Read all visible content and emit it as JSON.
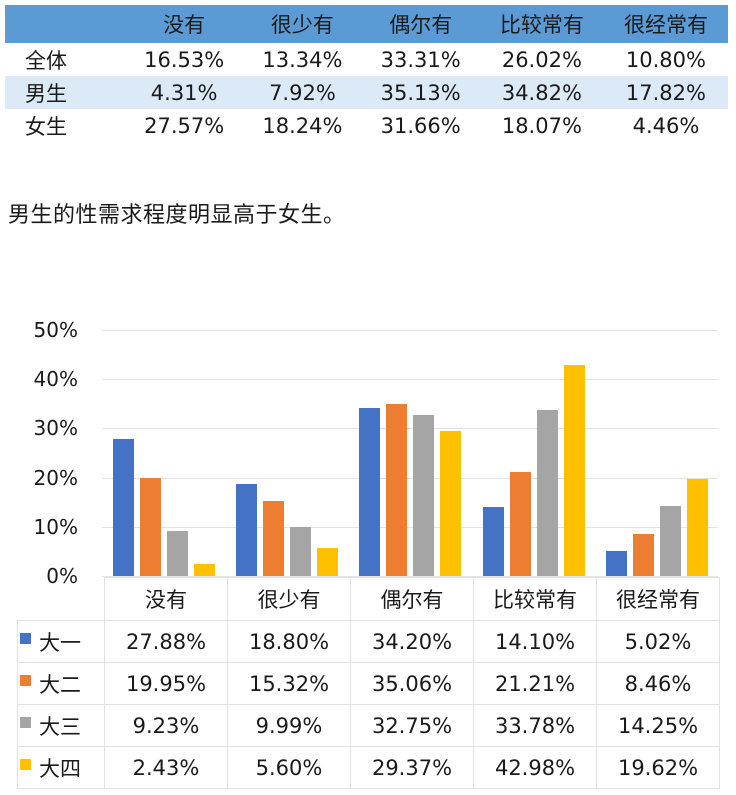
{
  "summary_table": {
    "columns": [
      "没有",
      "很少有",
      "偶尔有",
      "比较常有",
      "很经常有"
    ],
    "rows": [
      {
        "label": "全体",
        "values": [
          "16.53%",
          "13.34%",
          "33.31%",
          "26.02%",
          "10.80%"
        ]
      },
      {
        "label": "男生",
        "values": [
          "4.31%",
          "7.92%",
          "35.13%",
          "34.82%",
          "17.82%"
        ]
      },
      {
        "label": "女生",
        "values": [
          "27.57%",
          "18.24%",
          "31.66%",
          "18.07%",
          "4.46%"
        ]
      }
    ],
    "header_color": "#5b9bd5",
    "alt_row_color": "#dce9f6"
  },
  "statement": "男生的性需求程度明显高于女生。",
  "chart_data": [
    {
      "type": "table",
      "title": "",
      "columns": [
        "",
        "没有",
        "很少有",
        "偶尔有",
        "比较常有",
        "很经常有"
      ],
      "rows": [
        [
          "全体",
          16.53,
          13.34,
          33.31,
          26.02,
          10.8
        ],
        [
          "男生",
          4.31,
          7.92,
          35.13,
          34.82,
          17.82
        ],
        [
          "女生",
          27.57,
          18.24,
          31.66,
          18.07,
          4.46
        ]
      ]
    },
    {
      "type": "bar",
      "title": "",
      "xlabel": "",
      "ylabel": "",
      "categories": [
        "没有",
        "很少有",
        "偶尔有",
        "比较常有",
        "很经常有"
      ],
      "series": [
        {
          "name": "大一",
          "color": "#4472c4",
          "values": [
            27.88,
            18.8,
            34.2,
            14.1,
            5.02
          ]
        },
        {
          "name": "大二",
          "color": "#ed7d31",
          "values": [
            19.95,
            15.32,
            35.06,
            21.21,
            8.46
          ]
        },
        {
          "name": "大三",
          "color": "#a5a5a5",
          "values": [
            9.23,
            9.99,
            32.75,
            33.78,
            14.25
          ]
        },
        {
          "name": "大四",
          "color": "#ffc000",
          "values": [
            2.43,
            5.6,
            29.37,
            42.98,
            19.62
          ]
        }
      ],
      "yticks": [
        "0%",
        "10%",
        "20%",
        "30%",
        "40%",
        "50%"
      ],
      "ylim": [
        0,
        50
      ],
      "grid": true,
      "legend_position": "data-table"
    }
  ],
  "chart_table": {
    "columns": [
      "没有",
      "很少有",
      "偶尔有",
      "比较常有",
      "很经常有"
    ],
    "rows": [
      {
        "label": "大一",
        "values": [
          "27.88%",
          "18.80%",
          "34.20%",
          "14.10%",
          "5.02%"
        ]
      },
      {
        "label": "大二",
        "values": [
          "19.95%",
          "15.32%",
          "35.06%",
          "21.21%",
          "8.46%"
        ]
      },
      {
        "label": "大三",
        "values": [
          "9.23%",
          "9.99%",
          "32.75%",
          "33.78%",
          "14.25%"
        ]
      },
      {
        "label": "大四",
        "values": [
          "2.43%",
          "5.60%",
          "29.37%",
          "42.98%",
          "19.62%"
        ]
      }
    ]
  }
}
